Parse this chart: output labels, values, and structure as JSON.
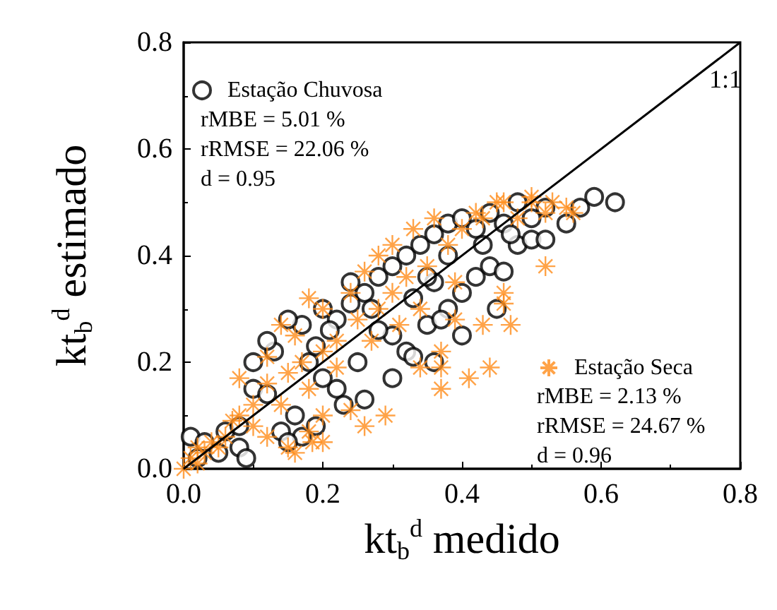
{
  "chart_data": {
    "type": "scatter",
    "xlabel": "kt$_{b}$$^{d}$ medido",
    "ylabel": "kt$_{b}$$^{d}$ estimado",
    "xlim": [
      0,
      0.8
    ],
    "ylim": [
      0,
      0.8
    ],
    "xticks": [
      {
        "value": 0,
        "label": "0.0"
      },
      0.2,
      0.4,
      0.6,
      0.8
    ],
    "yticks": [
      {
        "value": 0,
        "label": "0.0"
      },
      0.2,
      0.4,
      0.6,
      0.8
    ],
    "grid": false,
    "legend": "top left",
    "annotations": [
      "rMBE = 5.01 %",
      "rRMSE = 22.06 %",
      "d = 0.95",
      "rMBE = 2.13 %",
      "rRMSE = 24.67 %",
      "d = 0.96"
    ],
    "series": [
      {
        "name": "Estação Chuvosa",
        "marker": "circle",
        "color": "#000000",
        "x": [
          0.01,
          0.03,
          0.02,
          0.05,
          0.08,
          0.09,
          0.06,
          0.08,
          0.1,
          0.12,
          0.1,
          0.13,
          0.12,
          0.17,
          0.15,
          0.2,
          0.22,
          0.24,
          0.26,
          0.28,
          0.27,
          0.3,
          0.32,
          0.34,
          0.36,
          0.38,
          0.4,
          0.42,
          0.44,
          0.46,
          0.48,
          0.5,
          0.52,
          0.55,
          0.57,
          0.59,
          0.62,
          0.3,
          0.32,
          0.35,
          0.36,
          0.38,
          0.4,
          0.42,
          0.44,
          0.46,
          0.48,
          0.5,
          0.52,
          0.45,
          0.4,
          0.3,
          0.25,
          0.22,
          0.2,
          0.18,
          0.16,
          0.14,
          0.17,
          0.15,
          0.19,
          0.23,
          0.28,
          0.33,
          0.36,
          0.38,
          0.35,
          0.43,
          0.47,
          0.26,
          0.24,
          0.19,
          0.21,
          0.33,
          0.37
        ],
        "values": [
          0.06,
          0.05,
          0.02,
          0.03,
          0.04,
          0.02,
          0.07,
          0.08,
          0.15,
          0.14,
          0.2,
          0.22,
          0.24,
          0.27,
          0.28,
          0.3,
          0.28,
          0.35,
          0.33,
          0.36,
          0.3,
          0.38,
          0.4,
          0.42,
          0.44,
          0.46,
          0.47,
          0.45,
          0.48,
          0.46,
          0.5,
          0.47,
          0.49,
          0.46,
          0.49,
          0.51,
          0.5,
          0.25,
          0.22,
          0.27,
          0.2,
          0.3,
          0.33,
          0.36,
          0.38,
          0.37,
          0.42,
          0.43,
          0.43,
          0.3,
          0.25,
          0.17,
          0.2,
          0.15,
          0.17,
          0.2,
          0.1,
          0.07,
          0.06,
          0.05,
          0.08,
          0.12,
          0.26,
          0.32,
          0.35,
          0.4,
          0.36,
          0.42,
          0.44,
          0.13,
          0.31,
          0.23,
          0.26,
          0.21,
          0.28
        ]
      },
      {
        "name": "Estação Seca",
        "marker": "cross",
        "color": "#ff8c1a",
        "x": [
          0.0,
          0.01,
          0.02,
          0.03,
          0.04,
          0.02,
          0.06,
          0.08,
          0.1,
          0.12,
          0.15,
          0.17,
          0.2,
          0.22,
          0.25,
          0.28,
          0.3,
          0.32,
          0.35,
          0.38,
          0.4,
          0.43,
          0.46,
          0.5,
          0.52,
          0.55,
          0.48,
          0.36,
          0.33,
          0.3,
          0.28,
          0.26,
          0.24,
          0.2,
          0.18,
          0.16,
          0.14,
          0.12,
          0.08,
          0.1,
          0.12,
          0.15,
          0.18,
          0.2,
          0.16,
          0.185,
          0.2,
          0.24,
          0.26,
          0.29,
          0.34,
          0.37,
          0.37,
          0.41,
          0.44,
          0.37,
          0.39,
          0.43,
          0.46,
          0.47,
          0.46,
          0.52,
          0.42,
          0.45,
          0.5,
          0.53,
          0.56,
          0.39,
          0.34,
          0.31,
          0.27,
          0.22,
          0.18,
          0.14,
          0.05,
          0.07
        ],
        "values": [
          0.0,
          0.02,
          0.01,
          0.03,
          0.05,
          0.04,
          0.06,
          0.1,
          0.12,
          0.16,
          0.18,
          0.2,
          0.22,
          0.24,
          0.28,
          0.3,
          0.33,
          0.36,
          0.38,
          0.42,
          0.45,
          0.47,
          0.5,
          0.5,
          0.48,
          0.49,
          0.47,
          0.47,
          0.45,
          0.42,
          0.4,
          0.37,
          0.33,
          0.3,
          0.32,
          0.25,
          0.27,
          0.21,
          0.17,
          0.08,
          0.06,
          0.04,
          0.07,
          0.05,
          0.03,
          0.05,
          0.1,
          0.11,
          0.08,
          0.1,
          0.19,
          0.19,
          0.15,
          0.17,
          0.19,
          0.22,
          0.28,
          0.27,
          0.33,
          0.27,
          0.31,
          0.38,
          0.48,
          0.5,
          0.51,
          0.5,
          0.48,
          0.35,
          0.3,
          0.27,
          0.24,
          0.19,
          0.15,
          0.12,
          0.04,
          0.09
        ]
      },
      {
        "name": "1:1",
        "type": "line",
        "marker": "none",
        "color": "#000000",
        "x": [
          0,
          0.8
        ],
        "values": [
          0,
          0.8
        ]
      }
    ]
  }
}
